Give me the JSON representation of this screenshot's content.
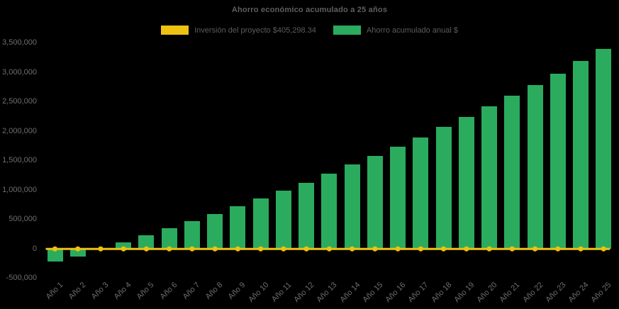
{
  "page": {
    "background": "#000000"
  },
  "chart_data": {
    "type": "bar",
    "title": "Ahorro económico acumulado a 25 años",
    "categories": [
      "Año 1",
      "Año 2",
      "Año 3",
      "Año 4",
      "Año 5",
      "Año 6",
      "Año 7",
      "Año 8",
      "Año 9",
      "Año 10",
      "Año 11",
      "Año 12",
      "Año 13",
      "Año 14",
      "Año 15",
      "Año 16",
      "Año 17",
      "Año 18",
      "Año 19",
      "Año 20",
      "Año 21",
      "Año 22",
      "Año 23",
      "Año 24",
      "Año 25"
    ],
    "series": [
      {
        "name": "Inversión del proyecto $405,298.34",
        "type": "line",
        "color": "#edc211",
        "marker": "circle",
        "plotted_level": 0
      },
      {
        "name": "Ahorro acumulado anual $",
        "type": "bar",
        "color": "#2bab5e",
        "values": [
          -220000,
          -130000,
          -15000,
          115000,
          230000,
          350000,
          470000,
          595000,
          720000,
          860000,
          990000,
          1125000,
          1275000,
          1440000,
          1585000,
          1735000,
          1890000,
          2070000,
          2240000,
          2430000,
          2605000,
          2790000,
          2980000,
          3190000,
          3400000
        ]
      }
    ],
    "ylim": [
      -500000,
      3500000
    ],
    "ytick_step": 500000,
    "grid": false,
    "legend_position": "top-center",
    "axis_text_color": "#6e6e6e",
    "title_color": "#5f5f5f",
    "background": "#000000"
  }
}
